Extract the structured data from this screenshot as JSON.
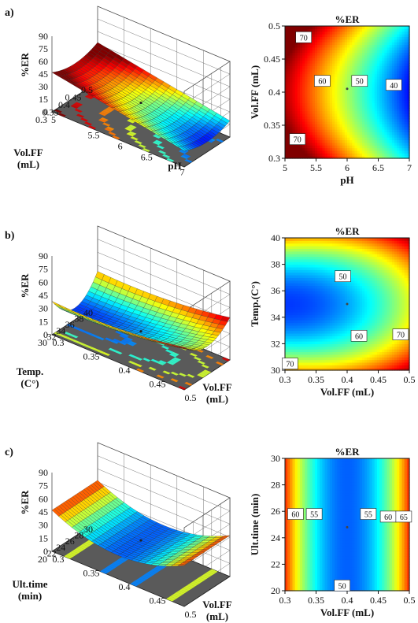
{
  "chart_data": [
    {
      "type": "surface3d",
      "panel_label": "a)",
      "zlabel": "%ER",
      "z_ticks": [
        "0",
        "15",
        "30",
        "45",
        "60",
        "75",
        "90"
      ],
      "x_label": "pH",
      "x_ticks": [
        "5.5",
        "6",
        "6.5",
        "7"
      ],
      "y_label_lines": [
        "Vol.FF",
        "(mL)"
      ],
      "y_ticks": [
        "0.5",
        "0.45",
        "0.4",
        "0.35",
        "0.3"
      ],
      "base_corner_label": "5",
      "colormap": "jet"
    },
    {
      "type": "contour",
      "title": "%ER",
      "xlabel": "pH",
      "ylabel": "Vol.FF (mL)",
      "xlim": [
        5,
        7
      ],
      "ylim": [
        0.3,
        0.5
      ],
      "x_ticks": [
        "5",
        "5.5",
        "6",
        "6.5",
        "7"
      ],
      "y_ticks": [
        "0.3",
        "0.35",
        "0.4",
        "0.45",
        "0.5"
      ],
      "contour_labels": [
        {
          "text": "70",
          "x": 5.3,
          "y": 0.483
        },
        {
          "text": "60",
          "x": 5.6,
          "y": 0.417
        },
        {
          "text": "50",
          "x": 6.2,
          "y": 0.417
        },
        {
          "text": "40",
          "x": 6.75,
          "y": 0.411
        },
        {
          "text": "70",
          "x": 5.2,
          "y": 0.329
        }
      ],
      "center_point": {
        "x": 6.0,
        "y": 0.405
      },
      "colormap": "jet"
    },
    {
      "type": "surface3d",
      "panel_label": "b)",
      "zlabel": "%ER",
      "z_ticks": [
        "0",
        "15",
        "30",
        "45",
        "60",
        "75",
        "90"
      ],
      "x_label_lines": [
        "Vol.FF",
        "(mL)"
      ],
      "x_ticks": [
        "0.3",
        "0.35",
        "0.4",
        "0.45",
        "0.5"
      ],
      "y_label_lines": [
        "Temp.",
        "(C°)"
      ],
      "y_ticks": [
        "40",
        "38",
        "36",
        "34",
        "32",
        "30"
      ],
      "colormap": "jet"
    },
    {
      "type": "contour",
      "title": "%ER",
      "xlabel": "Vol.FF (mL)",
      "ylabel": "Temp.(C°)",
      "xlim": [
        0.3,
        0.5
      ],
      "ylim": [
        30,
        40
      ],
      "x_ticks": [
        "0.3",
        "0.35",
        "0.4",
        "0.45",
        "0.5"
      ],
      "y_ticks": [
        "30",
        "32",
        "34",
        "36",
        "38",
        "40"
      ],
      "contour_labels": [
        {
          "text": "50",
          "x": 0.393,
          "y": 37.1
        },
        {
          "text": "60",
          "x": 0.419,
          "y": 32.6
        },
        {
          "text": "70",
          "x": 0.486,
          "y": 32.7
        },
        {
          "text": "70",
          "x": 0.308,
          "y": 30.5
        }
      ],
      "center_point": {
        "x": 0.4,
        "y": 35.0
      },
      "colormap": "jet"
    },
    {
      "type": "surface3d",
      "panel_label": "c)",
      "zlabel": "%ER",
      "z_ticks": [
        "0",
        "15",
        "30",
        "45",
        "60",
        "75",
        "90"
      ],
      "x_label_lines": [
        "Vol.FF",
        "(mL)"
      ],
      "x_ticks": [
        "0.3",
        "0.35",
        "0.4",
        "0.45",
        "0.5"
      ],
      "y_label_lines": [
        "Ult.time",
        "(min)"
      ],
      "y_ticks": [
        "30",
        "28",
        "26",
        "24",
        "22",
        "20"
      ],
      "colormap": "jet"
    },
    {
      "type": "contour",
      "title": "%ER",
      "xlabel": "Vol.FF (mL)",
      "ylabel": "Ult.time (min)",
      "xlim": [
        0.3,
        0.5
      ],
      "ylim": [
        20,
        30
      ],
      "x_ticks": [
        "0.3",
        "0.35",
        "0.4",
        "0.45",
        "0.5"
      ],
      "y_ticks": [
        "20",
        "22",
        "24",
        "26",
        "28",
        "30"
      ],
      "contour_labels": [
        {
          "text": "60",
          "x": 0.317,
          "y": 25.8
        },
        {
          "text": "55",
          "x": 0.347,
          "y": 25.8
        },
        {
          "text": "55",
          "x": 0.434,
          "y": 25.8
        },
        {
          "text": "60",
          "x": 0.466,
          "y": 25.6
        },
        {
          "text": "65",
          "x": 0.491,
          "y": 25.6
        },
        {
          "text": "50",
          "x": 0.392,
          "y": 20.4
        }
      ],
      "center_point": {
        "x": 0.4,
        "y": 24.8
      },
      "colormap": "jet"
    }
  ]
}
